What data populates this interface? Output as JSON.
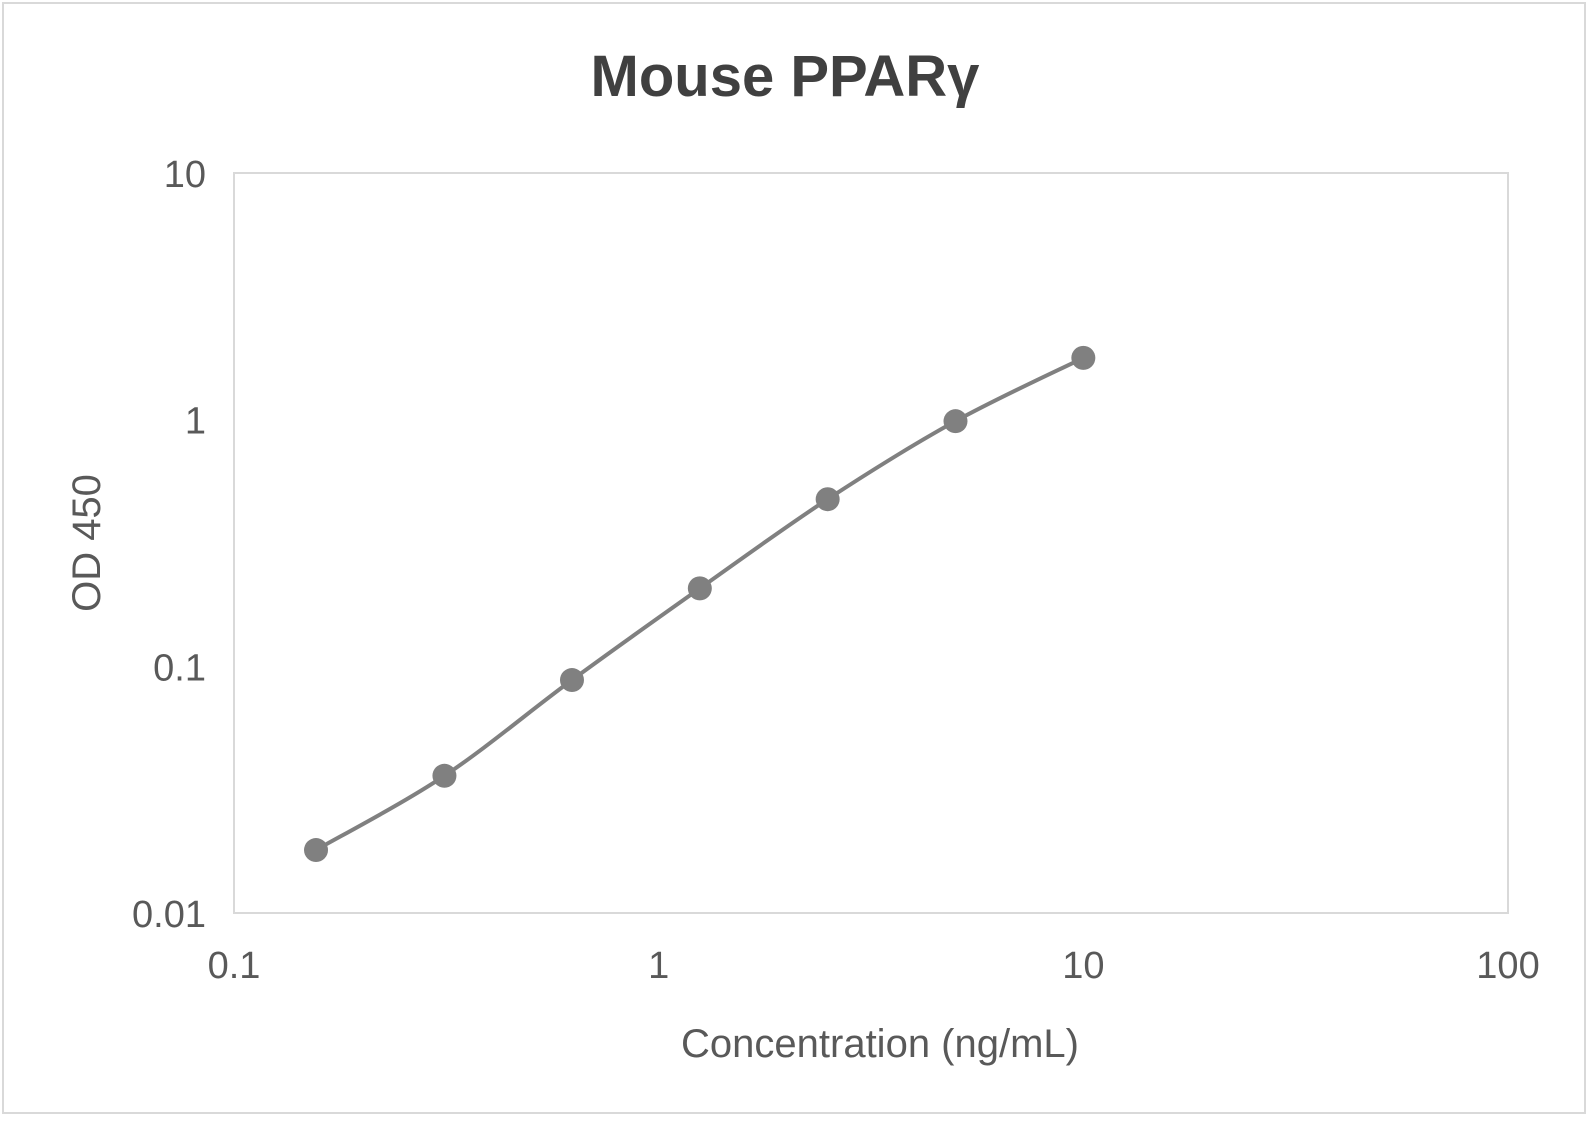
{
  "chart_data": {
    "type": "line",
    "title": "Mouse PPARγ",
    "xlabel": "Concentration (ng/mL)",
    "ylabel": "OD 450",
    "xscale": "log",
    "yscale": "log",
    "xlim": [
      0.1,
      100
    ],
    "ylim": [
      0.01,
      10
    ],
    "x_ticks": [
      "0.1",
      "1",
      "10",
      "100"
    ],
    "y_ticks": [
      "0.01",
      "0.1",
      "1",
      "10"
    ],
    "grid": false,
    "legend": null,
    "series": [
      {
        "name": "Mouse PPARγ",
        "color": "#808080",
        "smooth": true,
        "marker": "circle",
        "x": [
          0.156,
          0.313,
          0.625,
          1.25,
          2.5,
          5,
          10
        ],
        "values": [
          0.018,
          0.036,
          0.088,
          0.207,
          0.476,
          0.986,
          1.78
        ]
      }
    ]
  },
  "colors": {
    "text": "#595959",
    "title": "#404040",
    "axis": "#d9d9d9",
    "series": "#808080"
  }
}
